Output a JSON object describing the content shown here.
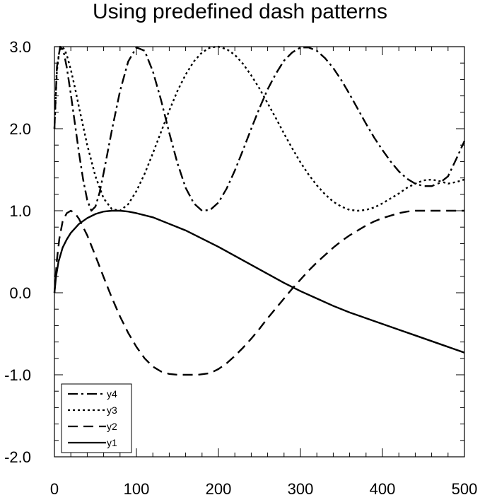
{
  "chart_data": {
    "type": "line",
    "title": "Using predefined dash patterns",
    "xlabel": "",
    "ylabel": "",
    "xlim": [
      0,
      500
    ],
    "ylim": [
      -2.0,
      3.0
    ],
    "x_ticks": [
      {
        "value": 0,
        "label": "0"
      },
      {
        "value": 100,
        "label": "100"
      },
      {
        "value": 200,
        "label": "200"
      },
      {
        "value": 300,
        "label": "300"
      },
      {
        "value": 400,
        "label": "400"
      },
      {
        "value": 500,
        "label": "500"
      }
    ],
    "y_ticks": [
      {
        "value": -2.0,
        "label": "-2.0"
      },
      {
        "value": -1.0,
        "label": "-1.0"
      },
      {
        "value": 0.0,
        "label": "0.0"
      },
      {
        "value": 1.0,
        "label": "1.0"
      },
      {
        "value": 2.0,
        "label": "2.0"
      },
      {
        "value": 3.0,
        "label": "3.0"
      }
    ],
    "grid": false,
    "legend_position": "bottom-left",
    "series": [
      {
        "name": "y4",
        "dash": "dash-dot",
        "x": [
          0,
          3,
          7,
          11,
          15,
          20,
          25,
          30,
          35,
          40,
          45,
          50,
          55,
          60,
          70,
          80,
          90,
          100,
          110,
          120,
          130,
          140,
          150,
          160,
          170,
          180,
          190,
          200,
          210,
          220,
          230,
          240,
          250,
          260,
          270,
          280,
          290,
          300,
          310,
          320,
          330,
          340,
          350,
          360,
          370,
          380,
          390,
          400,
          410,
          420,
          430,
          440,
          450,
          460,
          470,
          480,
          490,
          500
        ],
        "values": [
          2.0,
          2.75,
          3.0,
          2.95,
          2.75,
          2.42,
          2.06,
          1.7,
          1.38,
          1.13,
          1.0,
          1.05,
          1.22,
          1.46,
          1.98,
          2.46,
          2.82,
          2.99,
          2.95,
          2.7,
          2.35,
          1.95,
          1.58,
          1.28,
          1.09,
          1.0,
          1.01,
          1.1,
          1.27,
          1.49,
          1.74,
          2.0,
          2.25,
          2.48,
          2.67,
          2.83,
          2.93,
          2.99,
          2.99,
          2.95,
          2.86,
          2.74,
          2.59,
          2.42,
          2.24,
          2.06,
          1.89,
          1.74,
          1.6,
          1.48,
          1.39,
          1.33,
          1.3,
          1.3,
          1.34,
          1.42,
          1.63,
          1.85
        ]
      },
      {
        "name": "y3",
        "dash": "dot",
        "x": [
          0,
          3,
          6,
          9,
          12,
          15,
          20,
          25,
          30,
          40,
          50,
          60,
          70,
          80,
          90,
          100,
          110,
          120,
          130,
          140,
          150,
          160,
          170,
          180,
          190,
          200,
          210,
          220,
          230,
          240,
          250,
          260,
          270,
          280,
          290,
          300,
          310,
          320,
          330,
          340,
          350,
          360,
          370,
          380,
          390,
          400,
          410,
          420,
          430,
          440,
          450,
          460,
          470,
          480,
          490,
          500
        ],
        "values": [
          2.0,
          2.7,
          2.95,
          3.0,
          2.97,
          2.9,
          2.72,
          2.5,
          2.26,
          1.8,
          1.42,
          1.15,
          1.02,
          1.0,
          1.08,
          1.24,
          1.45,
          1.7,
          1.96,
          2.22,
          2.46,
          2.66,
          2.82,
          2.93,
          2.99,
          3.0,
          2.97,
          2.9,
          2.79,
          2.65,
          2.49,
          2.31,
          2.13,
          1.94,
          1.76,
          1.59,
          1.44,
          1.31,
          1.2,
          1.11,
          1.05,
          1.01,
          1.0,
          1.01,
          1.04,
          1.09,
          1.15,
          1.21,
          1.28,
          1.33,
          1.37,
          1.38,
          1.36,
          1.33,
          1.35,
          1.38
        ]
      },
      {
        "name": "y2",
        "dash": "dash",
        "x": [
          0,
          3,
          6,
          10,
          15,
          20,
          25,
          30,
          40,
          50,
          60,
          70,
          80,
          90,
          100,
          110,
          120,
          130,
          140,
          150,
          160,
          175,
          190,
          200,
          210,
          220,
          230,
          240,
          250,
          260,
          270,
          280,
          290,
          300,
          310,
          320,
          330,
          340,
          350,
          360,
          370,
          380,
          390,
          400,
          410,
          420,
          430,
          440,
          450,
          460,
          470,
          480,
          490,
          500
        ],
        "values": [
          0.0,
          0.4,
          0.66,
          0.87,
          0.97,
          1.0,
          0.97,
          0.9,
          0.7,
          0.45,
          0.19,
          -0.06,
          -0.29,
          -0.49,
          -0.66,
          -0.8,
          -0.9,
          -0.96,
          -0.99,
          -1.0,
          -1.0,
          -1.0,
          -0.98,
          -0.93,
          -0.86,
          -0.77,
          -0.67,
          -0.56,
          -0.44,
          -0.31,
          -0.19,
          -0.07,
          0.05,
          0.16,
          0.27,
          0.37,
          0.46,
          0.55,
          0.63,
          0.7,
          0.76,
          0.82,
          0.87,
          0.91,
          0.94,
          0.97,
          0.99,
          1.0,
          1.0,
          1.0,
          1.0,
          1.0,
          1.0,
          1.0
        ]
      },
      {
        "name": "y1",
        "dash": "solid",
        "x": [
          0,
          2,
          5,
          10,
          15,
          20,
          30,
          40,
          50,
          60,
          70,
          80,
          90,
          100,
          120,
          140,
          160,
          180,
          200,
          220,
          240,
          260,
          280,
          300,
          320,
          340,
          360,
          380,
          400,
          420,
          440,
          460,
          480,
          500
        ],
        "values": [
          0.0,
          0.2,
          0.38,
          0.55,
          0.65,
          0.73,
          0.84,
          0.91,
          0.96,
          0.99,
          1.0,
          1.0,
          0.99,
          0.97,
          0.92,
          0.84,
          0.76,
          0.66,
          0.56,
          0.45,
          0.34,
          0.23,
          0.12,
          0.02,
          -0.07,
          -0.16,
          -0.24,
          -0.31,
          -0.38,
          -0.45,
          -0.52,
          -0.59,
          -0.66,
          -0.73
        ]
      }
    ]
  }
}
